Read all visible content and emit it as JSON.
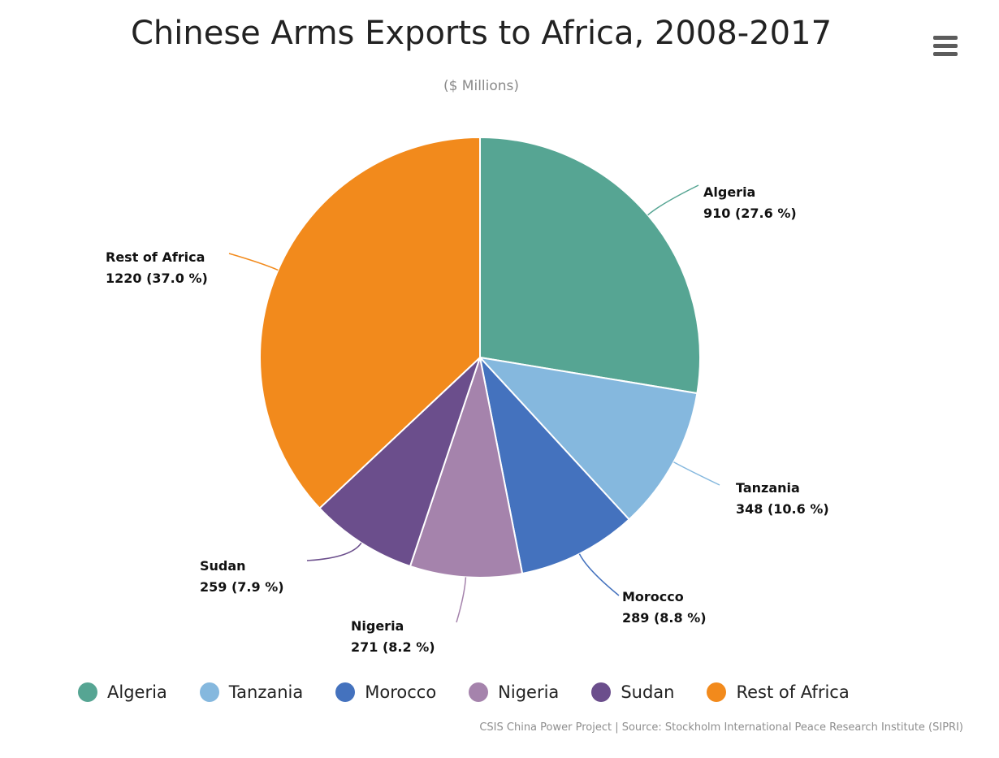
{
  "chart_data": {
    "type": "pie",
    "title": "Chinese Arms Exports to Africa, 2008-2017",
    "subtitle": "($ Millions)",
    "slices": [
      {
        "name": "Algeria",
        "value": 910,
        "percent_label": "27.6 %",
        "color": "#56A593"
      },
      {
        "name": "Tanzania",
        "value": 348,
        "percent_label": "10.6 %",
        "color": "#85B8DE"
      },
      {
        "name": "Morocco",
        "value": 289,
        "percent_label": "8.8 %",
        "color": "#4472BE"
      },
      {
        "name": "Nigeria",
        "value": 271,
        "percent_label": "8.2 %",
        "color": "#A583AC"
      },
      {
        "name": "Sudan",
        "value": 259,
        "percent_label": "7.9 %",
        "color": "#6B4E8C"
      },
      {
        "name": "Rest of Africa",
        "value": 1220,
        "percent_label": "37.0 %",
        "color": "#F28A1C"
      }
    ],
    "legend_placement": "bottom"
  },
  "credits": "CSIS China Power Project | Source: Stockholm International Peace Research Institute (SIPRI)",
  "menu": {
    "icon": "hamburger-menu-icon"
  }
}
